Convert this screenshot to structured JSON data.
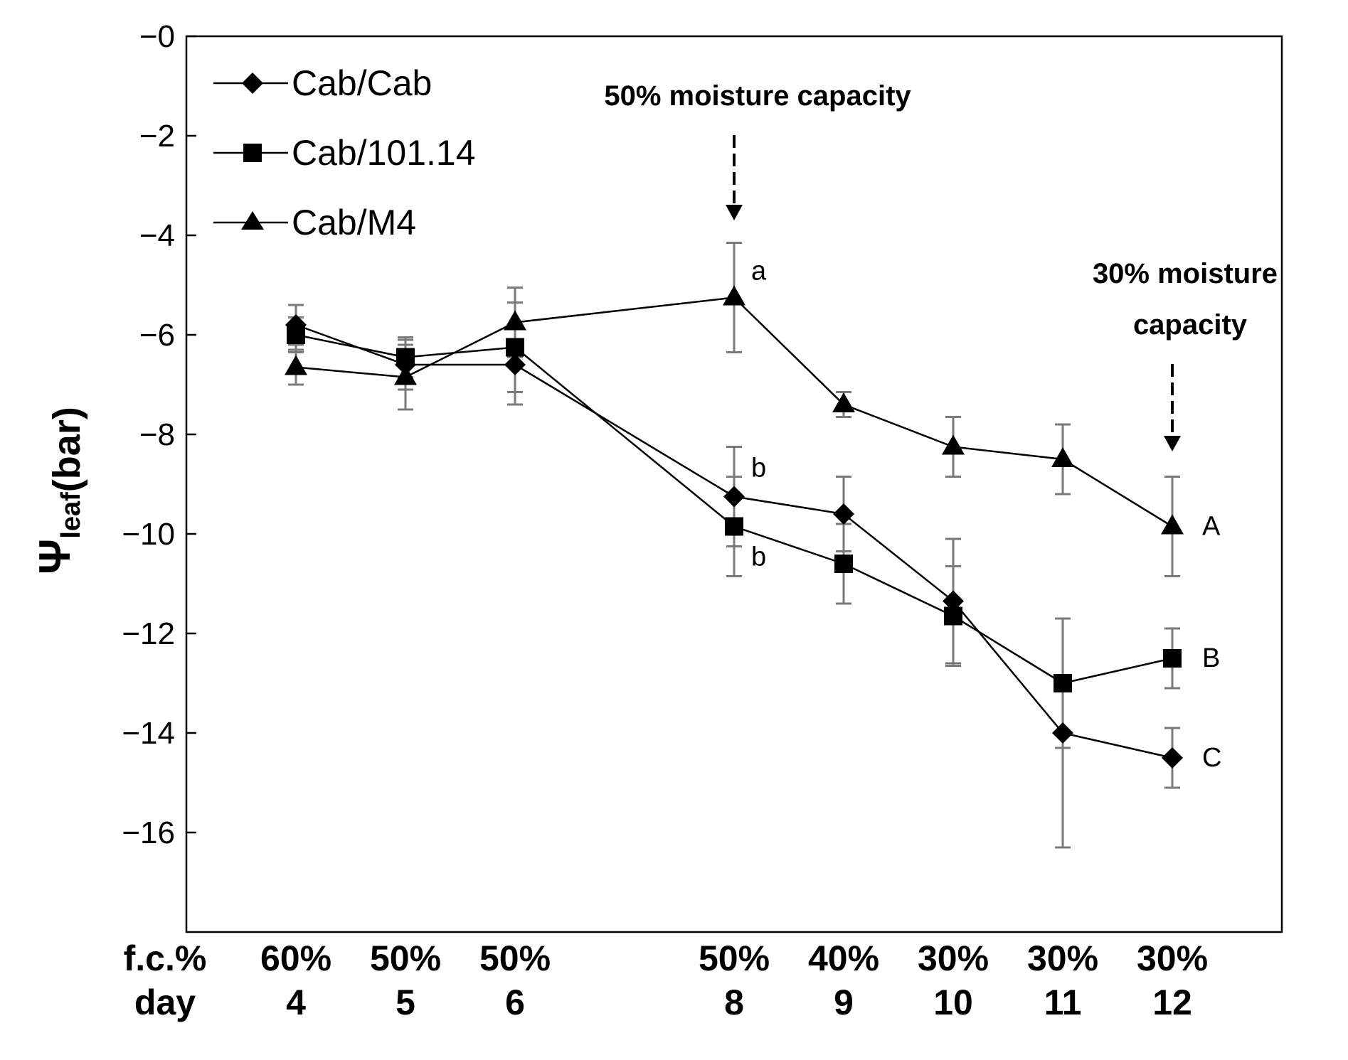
{
  "chart_data": {
    "type": "line",
    "ylabel_symbol": "Ψ",
    "ylabel_subscript": "leaf",
    "ylabel_unit": "(bar)",
    "ylim": [
      -18,
      0
    ],
    "yticks": [
      {
        "value": 0,
        "label": "−0"
      },
      {
        "value": -2,
        "label": "−2"
      },
      {
        "value": -4,
        "label": "−4"
      },
      {
        "value": -6,
        "label": "−6"
      },
      {
        "value": -8,
        "label": "−8"
      },
      {
        "value": -10,
        "label": "−10"
      },
      {
        "value": -12,
        "label": "−12"
      },
      {
        "value": -14,
        "label": "−14"
      },
      {
        "value": -16,
        "label": "−16"
      }
    ],
    "xlim": [
      3,
      13
    ],
    "x_row_labels": [
      "f.c.%",
      "day"
    ],
    "x": [
      4,
      5,
      6,
      8,
      9,
      10,
      11,
      12
    ],
    "fc": [
      "60%",
      "50%",
      "50%",
      "50%",
      "40%",
      "30%",
      "30%",
      "30%"
    ],
    "days": [
      "4",
      "5",
      "6",
      "8",
      "9",
      "10",
      "11",
      "12"
    ],
    "series": [
      {
        "name": "Cab/Cab",
        "marker": "diamond",
        "values": [
          -5.8,
          -6.6,
          -6.6,
          -9.25,
          -9.6,
          -11.35,
          -14.0,
          -14.5
        ],
        "errors": [
          0.4,
          0.5,
          0.8,
          1.0,
          0.75,
          1.25,
          2.3,
          0.6
        ]
      },
      {
        "name": "Cab/101.14",
        "marker": "square",
        "values": [
          -6.0,
          -6.45,
          -6.25,
          -9.85,
          -10.6,
          -11.65,
          -13.0,
          -12.5
        ],
        "errors": [
          0.35,
          0.4,
          0.9,
          1.0,
          0.8,
          1.0,
          1.3,
          0.6
        ]
      },
      {
        "name": "Cab/M4",
        "marker": "triangle",
        "values": [
          -6.65,
          -6.85,
          -5.75,
          -5.25,
          -7.4,
          -8.25,
          -8.5,
          -9.85
        ],
        "errors": [
          0.35,
          0.65,
          0.7,
          1.1,
          0.25,
          0.6,
          0.7,
          1.0
        ]
      }
    ],
    "annotations": {
      "arrow1": {
        "label": "50% moisture capacity",
        "x": 8
      },
      "arrow2": {
        "line1": "30% moisture",
        "line2": "capacity",
        "x": 12
      }
    },
    "significance_labels": [
      {
        "text": "a",
        "x": 8,
        "y": -5.25
      },
      {
        "text": "b",
        "x": 8,
        "y": -9.25
      },
      {
        "text": "b",
        "x": 8,
        "y": -9.85
      },
      {
        "text": "A",
        "x": 12,
        "y": -9.85
      },
      {
        "text": "B",
        "x": 12,
        "y": -12.5
      },
      {
        "text": "C",
        "x": 12,
        "y": -14.5
      }
    ]
  }
}
